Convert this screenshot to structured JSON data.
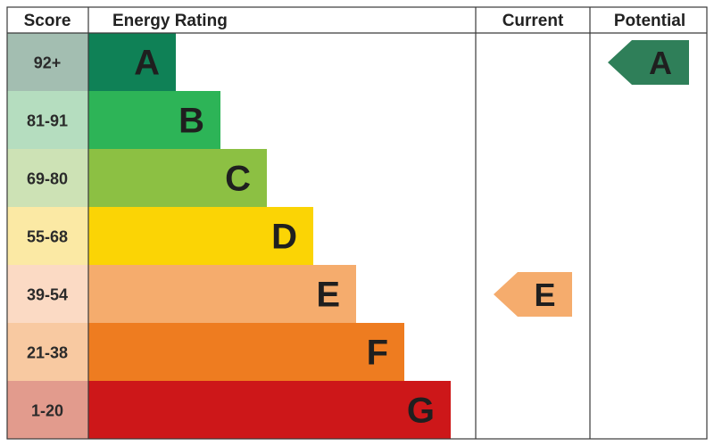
{
  "headers": {
    "score": "Score",
    "energy_rating": "Energy Rating",
    "current": "Current",
    "potential": "Potential"
  },
  "chart_data": {
    "type": "bar",
    "bands": [
      {
        "letter": "A",
        "score": "92+",
        "color": "#0f8156",
        "score_bg": "#a3beb1"
      },
      {
        "letter": "B",
        "score": "81-91",
        "color": "#2db457",
        "score_bg": "#b5ddbf"
      },
      {
        "letter": "C",
        "score": "69-80",
        "color": "#8cc043",
        "score_bg": "#cde2b5"
      },
      {
        "letter": "D",
        "score": "55-68",
        "color": "#fbd405",
        "score_bg": "#fbe9a4"
      },
      {
        "letter": "E",
        "score": "39-54",
        "color": "#f5ac6d",
        "score_bg": "#fbdac4"
      },
      {
        "letter": "F",
        "score": "21-38",
        "color": "#ee7c20",
        "score_bg": "#f8c9a1"
      },
      {
        "letter": "G",
        "score": "1-20",
        "color": "#cd1719",
        "score_bg": "#e29b8d"
      }
    ],
    "current": {
      "letter": "E",
      "color": "#f5ac6d"
    },
    "potential": {
      "letter": "A",
      "color": "#2f7f59"
    }
  }
}
